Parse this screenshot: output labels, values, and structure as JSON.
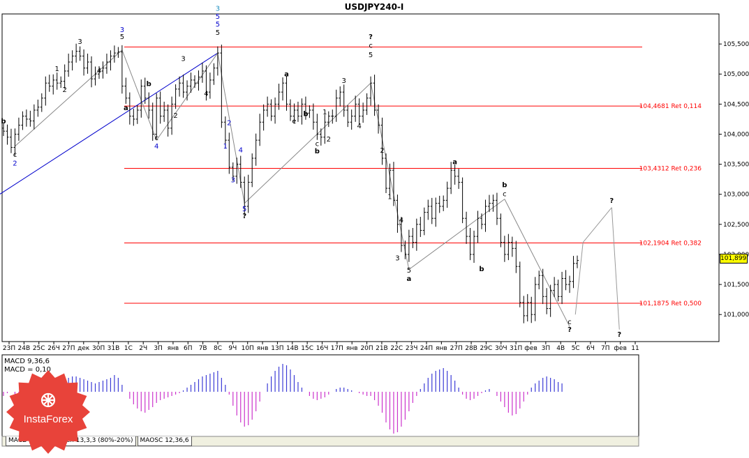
{
  "title": "USDJPY240-I",
  "current_price": "101,899",
  "colors": {
    "bg": "#ffffff",
    "bar": "#000000",
    "level": "#ff0000",
    "wave_blue": "#0000cc",
    "macd_pos": "#3b3bd6",
    "macd_neg": "#cc33cc",
    "logo": "#e8433a"
  },
  "chart_data": {
    "type": "ohlc",
    "y_ticks": [
      "105,500",
      "105,000",
      "104,500",
      "104,000",
      "103,500",
      "103,000",
      "102,500",
      "102,000",
      "101,500",
      "101,000"
    ],
    "ylim": [
      100.55,
      106.0
    ],
    "x_ticks": [
      "23П",
      "24В",
      "25С",
      "26Ч",
      "27П",
      "дек",
      "30П",
      "31В",
      "1С",
      "2Ч",
      "3П",
      "янв",
      "6П",
      "7В",
      "8С",
      "9Ч",
      "10П",
      "янв",
      "13П",
      "14В",
      "15С",
      "16Ч",
      "17П",
      "янв",
      "20П",
      "21В",
      "22С",
      "23Ч",
      "24П",
      "янв",
      "27П",
      "28В",
      "29С",
      "30Ч",
      "31П",
      "фев",
      "3П",
      "4В",
      "5С",
      "6Ч",
      "7П",
      "фев",
      "11"
    ],
    "levels": [
      {
        "value": 105.45,
        "label": ""
      },
      {
        "value": 104.4681,
        "label": "104,4681 Ret 0,114"
      },
      {
        "value": 103.4312,
        "label": "103,4312 Ret 0,236"
      },
      {
        "value": 102.1904,
        "label": "102,1904 Ret 0,382"
      },
      {
        "value": 101.1875,
        "label": "101,1875 Ret 0,500"
      }
    ],
    "closes": [
      104.05,
      103.95,
      103.78,
      104.0,
      104.15,
      104.3,
      104.25,
      104.22,
      104.4,
      104.45,
      104.6,
      104.85,
      104.8,
      104.9,
      104.85,
      104.88,
      105.05,
      105.2,
      105.3,
      105.38,
      105.3,
      105.1,
      105.2,
      104.92,
      105.0,
      105.05,
      105.1,
      105.2,
      105.3,
      105.35,
      105.37,
      104.8,
      104.6,
      104.3,
      104.25,
      104.4,
      104.8,
      104.6,
      104.4,
      104.0,
      104.6,
      104.3,
      104.4,
      104.1,
      104.5,
      104.75,
      104.85,
      104.7,
      104.8,
      104.9,
      104.85,
      104.95,
      105.05,
      104.7,
      104.9,
      105.1,
      105.35,
      104.2,
      103.9,
      103.45,
      103.3,
      103.5,
      103.2,
      102.8,
      103.2,
      103.6,
      103.9,
      104.2,
      104.4,
      104.5,
      104.3,
      104.5,
      104.7,
      104.85,
      104.5,
      104.3,
      104.4,
      104.3,
      104.5,
      104.35,
      104.4,
      104.2,
      104.0,
      103.95,
      104.2,
      104.3,
      104.3,
      104.6,
      104.7,
      104.4,
      104.2,
      104.3,
      104.5,
      104.3,
      104.4,
      104.6,
      104.85,
      104.4,
      104.15,
      103.6,
      103.1,
      103.4,
      102.9,
      102.5,
      102.15,
      102.0,
      102.3,
      102.2,
      102.5,
      102.4,
      102.7,
      102.8,
      102.6,
      102.85,
      102.8,
      102.9,
      103.1,
      103.4,
      103.3,
      103.2,
      102.6,
      102.3,
      102.0,
      102.3,
      102.6,
      102.5,
      102.8,
      102.85,
      102.9,
      102.6,
      102.2,
      102.0,
      102.2,
      102.1,
      101.8,
      101.2,
      100.98,
      101.2,
      101.0,
      101.5,
      101.65,
      101.3,
      101.1,
      101.4,
      101.5,
      101.3,
      101.6,
      101.5,
      101.55,
      101.85,
      101.9
    ],
    "wave_labels": [
      {
        "i": 0,
        "v": 104.18,
        "t": "b",
        "c": "#000"
      },
      {
        "i": 3,
        "v": 103.62,
        "t": "c",
        "c": "#000"
      },
      {
        "i": 3,
        "v": 103.48,
        "t": "2",
        "c": "#0000cc"
      },
      {
        "i": 14,
        "v": 105.05,
        "t": "1",
        "c": "#000"
      },
      {
        "i": 16,
        "v": 104.7,
        "t": "2",
        "c": "#000"
      },
      {
        "i": 20,
        "v": 105.5,
        "t": "3",
        "c": "#000"
      },
      {
        "i": 25,
        "v": 105.02,
        "t": "4",
        "c": "#000"
      },
      {
        "i": 31,
        "v": 105.7,
        "t": "3",
        "c": "#0000cc"
      },
      {
        "i": 31,
        "v": 105.58,
        "t": "5",
        "c": "#000"
      },
      {
        "i": 32,
        "v": 104.4,
        "t": "a",
        "c": "#000"
      },
      {
        "i": 38,
        "v": 104.8,
        "t": "b",
        "c": "#000"
      },
      {
        "i": 40,
        "v": 103.9,
        "t": "c",
        "c": "#000"
      },
      {
        "i": 40,
        "v": 103.76,
        "t": "4",
        "c": "#0000cc"
      },
      {
        "i": 45,
        "v": 104.27,
        "t": "2",
        "c": "#000"
      },
      {
        "i": 47,
        "v": 105.22,
        "t": "3",
        "c": "#000"
      },
      {
        "i": 53,
        "v": 104.64,
        "t": "4",
        "c": "#000"
      },
      {
        "i": 56,
        "v": 106.05,
        "t": "3",
        "c": "#2090c0"
      },
      {
        "i": 56,
        "v": 105.92,
        "t": "5",
        "c": "#0000cc"
      },
      {
        "i": 56,
        "v": 105.79,
        "t": "5",
        "c": "#0000cc"
      },
      {
        "i": 56,
        "v": 105.65,
        "t": "5",
        "c": "#000"
      },
      {
        "i": 58,
        "v": 103.76,
        "t": "1",
        "c": "#0000cc"
      },
      {
        "i": 59,
        "v": 104.15,
        "t": "2",
        "c": "#0000cc"
      },
      {
        "i": 60,
        "v": 103.2,
        "t": "3",
        "c": "#0000cc"
      },
      {
        "i": 62,
        "v": 103.7,
        "t": "4",
        "c": "#0000cc"
      },
      {
        "i": 63,
        "v": 102.72,
        "t": "5",
        "c": "#0000cc"
      },
      {
        "i": 63,
        "v": 102.6,
        "t": "?",
        "c": "#000"
      },
      {
        "i": 74,
        "v": 104.96,
        "t": "a",
        "c": "#000"
      },
      {
        "i": 76,
        "v": 104.18,
        "t": "e",
        "c": "#000"
      },
      {
        "i": 79,
        "v": 104.3,
        "t": "b",
        "c": "#000"
      },
      {
        "i": 84,
        "v": 104.33,
        "t": "1",
        "c": "#000"
      },
      {
        "i": 82,
        "v": 103.8,
        "t": "c",
        "c": "#000"
      },
      {
        "i": 82,
        "v": 103.68,
        "t": "b",
        "c": "#000"
      },
      {
        "i": 85,
        "v": 103.88,
        "t": "2",
        "c": "#000"
      },
      {
        "i": 89,
        "v": 104.85,
        "t": "3",
        "c": "#000"
      },
      {
        "i": 93,
        "v": 104.1,
        "t": "4",
        "c": "#000"
      },
      {
        "i": 96,
        "v": 105.58,
        "t": "?",
        "c": "#000"
      },
      {
        "i": 96,
        "v": 105.44,
        "t": "c",
        "c": "#000"
      },
      {
        "i": 96,
        "v": 105.28,
        "t": "5",
        "c": "#000"
      },
      {
        "i": 99,
        "v": 103.69,
        "t": "2",
        "c": "#000"
      },
      {
        "i": 101,
        "v": 102.92,
        "t": "1",
        "c": "#000"
      },
      {
        "i": 104,
        "v": 102.53,
        "t": "4",
        "c": "#000"
      },
      {
        "i": 103,
        "v": 101.9,
        "t": "3",
        "c": "#000"
      },
      {
        "i": 106,
        "v": 101.7,
        "t": "5",
        "c": "#000"
      },
      {
        "i": 106,
        "v": 101.56,
        "t": "a",
        "c": "#000"
      },
      {
        "i": 118,
        "v": 103.5,
        "t": "a",
        "c": "#000"
      },
      {
        "i": 125,
        "v": 101.72,
        "t": "b",
        "c": "#000"
      },
      {
        "i": 131,
        "v": 103.12,
        "t": "b",
        "c": "#000"
      },
      {
        "i": 131,
        "v": 102.97,
        "t": "c",
        "c": "#000"
      },
      {
        "i": 148,
        "v": 100.84,
        "t": "c",
        "c": "#000"
      },
      {
        "i": 148,
        "v": 100.71,
        "t": "?",
        "c": "#000"
      },
      {
        "i": 159,
        "v": 102.86,
        "t": "?",
        "c": "#000"
      },
      {
        "i": 161,
        "v": 100.63,
        "t": "?",
        "c": "#000"
      }
    ],
    "projection": [
      {
        "i": 149.5,
        "v": 101.0
      },
      {
        "i": 151.5,
        "v": 102.2
      },
      {
        "i": 159,
        "v": 102.78
      },
      {
        "i": 161,
        "v": 100.75
      }
    ],
    "trendlines": [
      {
        "from": {
          "i": -1,
          "v": 103.0
        },
        "to": {
          "i": 56,
          "v": 105.35
        },
        "c": "#0000cc"
      },
      {
        "from": {
          "i": 3,
          "v": 103.8
        },
        "to": {
          "i": 31,
          "v": 105.4
        },
        "c": "#888"
      },
      {
        "from": {
          "i": 31,
          "v": 105.4
        },
        "to": {
          "i": 40,
          "v": 103.9
        },
        "c": "#888"
      },
      {
        "from": {
          "i": 40,
          "v": 103.9
        },
        "to": {
          "i": 56,
          "v": 105.35
        },
        "c": "#888"
      },
      {
        "from": {
          "i": 56,
          "v": 105.35
        },
        "to": {
          "i": 63,
          "v": 102.85
        },
        "c": "#888"
      },
      {
        "from": {
          "i": 63,
          "v": 102.85
        },
        "to": {
          "i": 96,
          "v": 104.85
        },
        "c": "#888"
      },
      {
        "from": {
          "i": 96,
          "v": 104.85
        },
        "to": {
          "i": 106,
          "v": 101.75
        },
        "c": "#888"
      },
      {
        "from": {
          "i": 106,
          "v": 101.75
        },
        "to": {
          "i": 131,
          "v": 102.92
        },
        "c": "#888"
      },
      {
        "from": {
          "i": 131,
          "v": 102.92
        },
        "to": {
          "i": 148,
          "v": 100.8
        },
        "c": "#888"
      }
    ],
    "indicator": {
      "name": "MACD 9,36,6",
      "value_label": "MACD = 0,10",
      "histogram": [
        -0.03,
        -0.01,
        0.0,
        -0.02,
        -0.03,
        -0.03,
        -0.01,
        0.0,
        0.01,
        0.02,
        0.03,
        0.04,
        0.05,
        0.06,
        0.07,
        0.08,
        0.09,
        0.1,
        0.11,
        0.11,
        0.1,
        0.09,
        0.08,
        0.07,
        0.06,
        0.07,
        0.08,
        0.09,
        0.1,
        0.12,
        0.1,
        0.05,
        0.0,
        -0.05,
        -0.09,
        -0.12,
        -0.14,
        -0.15,
        -0.13,
        -0.11,
        -0.08,
        -0.06,
        -0.05,
        -0.04,
        -0.03,
        -0.02,
        -0.01,
        0.01,
        0.03,
        0.05,
        0.07,
        0.09,
        0.11,
        0.12,
        0.13,
        0.14,
        0.15,
        0.1,
        0.05,
        -0.02,
        -0.1,
        -0.17,
        -0.22,
        -0.25,
        -0.24,
        -0.2,
        -0.14,
        -0.07,
        0.0,
        0.06,
        0.11,
        0.15,
        0.18,
        0.2,
        0.19,
        0.16,
        0.12,
        0.07,
        0.03,
        0.0,
        -0.03,
        -0.05,
        -0.06,
        -0.05,
        -0.04,
        -0.02,
        0.0,
        0.02,
        0.03,
        0.03,
        0.02,
        0.01,
        0.0,
        -0.01,
        -0.02,
        -0.03,
        -0.03,
        -0.06,
        -0.1,
        -0.15,
        -0.22,
        -0.27,
        -0.3,
        -0.29,
        -0.25,
        -0.2,
        -0.14,
        -0.08,
        -0.03,
        0.02,
        0.06,
        0.1,
        0.13,
        0.15,
        0.16,
        0.17,
        0.15,
        0.12,
        0.08,
        0.03,
        -0.02,
        -0.05,
        -0.06,
        -0.05,
        -0.03,
        -0.01,
        0.01,
        0.02,
        0.0,
        -0.03,
        -0.07,
        -0.11,
        -0.15,
        -0.17,
        -0.16,
        -0.12,
        -0.07,
        -0.02,
        0.03,
        0.06,
        0.08,
        0.1,
        0.11,
        0.1,
        0.09,
        0.07,
        0.06
      ]
    }
  }
}
